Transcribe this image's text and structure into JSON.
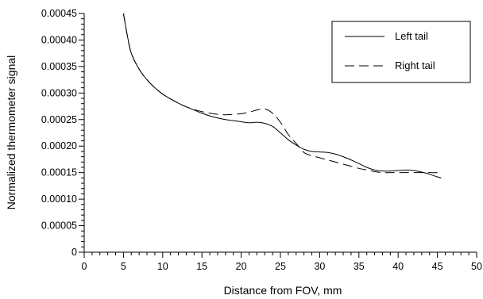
{
  "chart_data": {
    "type": "line",
    "xlabel": "Distance from FOV, mm",
    "ylabel": "Normalized thermometer signal",
    "xlim": [
      0,
      50
    ],
    "ylim": [
      0,
      0.00045
    ],
    "x_ticks": [
      "0",
      "5",
      "10",
      "15",
      "20",
      "25",
      "30",
      "35",
      "40",
      "45",
      "50"
    ],
    "y_ticks": [
      "0",
      "0.00005",
      "0.00010",
      "0.00015",
      "0.00020",
      "0.00025",
      "0.00030",
      "0.00035",
      "0.00040",
      "0.00045"
    ],
    "grid": false,
    "legend_position": "top-right",
    "series": [
      {
        "name": "Left tail",
        "style": "solid",
        "color": "#000000",
        "x": [
          5,
          5.5,
          6,
          7,
          8,
          9,
          10,
          11,
          12,
          13,
          14,
          15,
          16,
          17,
          18,
          19,
          20,
          21,
          22,
          23,
          24,
          25,
          26,
          27,
          28,
          29,
          30,
          31,
          32,
          33,
          34,
          35,
          36,
          37,
          38,
          39,
          40,
          41,
          42,
          43,
          44,
          45,
          45.5
        ],
        "y": [
          0.00045,
          0.000408,
          0.000375,
          0.000345,
          0.000325,
          0.00031,
          0.000298,
          0.000289,
          0.000281,
          0.000274,
          0.000268,
          0.000262,
          0.000257,
          0.000253,
          0.00025,
          0.000248,
          0.000246,
          0.000244,
          0.000245,
          0.000243,
          0.000237,
          0.000225,
          0.000212,
          0.000202,
          0.000194,
          0.00019,
          0.000189,
          0.000188,
          0.000185,
          0.00018,
          0.000174,
          0.000167,
          0.00016,
          0.000155,
          0.000153,
          0.000153,
          0.000154,
          0.000155,
          0.000154,
          0.000151,
          0.000147,
          0.000142,
          0.00014
        ]
      },
      {
        "name": "Right tail",
        "style": "dashed",
        "color": "#000000",
        "x": [
          5,
          5.5,
          6,
          7,
          8,
          9,
          10,
          11,
          12,
          13,
          14,
          15,
          16,
          17,
          18,
          19,
          20,
          21,
          22,
          23,
          24,
          25,
          26,
          27,
          28,
          29,
          30,
          31,
          32,
          33,
          34,
          35,
          36,
          37,
          38,
          39,
          40,
          41,
          42,
          43,
          44,
          45,
          45.5
        ],
        "y": [
          0.00045,
          0.000408,
          0.000375,
          0.000345,
          0.000325,
          0.00031,
          0.000298,
          0.000289,
          0.000281,
          0.000274,
          0.000269,
          0.000265,
          0.000262,
          0.00026,
          0.000259,
          0.00026,
          0.000261,
          0.000264,
          0.000268,
          0.00027,
          0.000262,
          0.000245,
          0.000222,
          0.000205,
          0.000188,
          0.000182,
          0.000178,
          0.000174,
          0.00017,
          0.000166,
          0.000162,
          0.000158,
          0.000155,
          0.000152,
          0.00015,
          0.00015,
          0.00015,
          0.00015,
          0.00015,
          0.00015,
          0.00015,
          0.00015,
          0.000151
        ]
      }
    ]
  }
}
